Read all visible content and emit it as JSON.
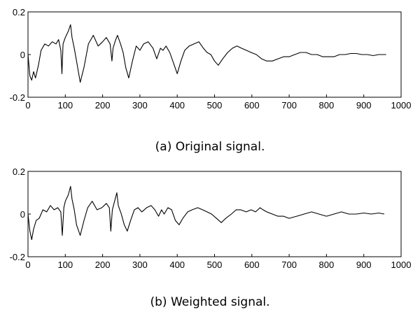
{
  "chart_data": [
    {
      "type": "line",
      "caption": "(a) Original signal.",
      "title": "",
      "xlabel": "",
      "ylabel": "",
      "xlim": [
        0,
        1000
      ],
      "ylim": [
        -0.2,
        0.2
      ],
      "xticks": [
        0,
        100,
        200,
        300,
        400,
        500,
        600,
        700,
        800,
        900,
        1000
      ],
      "yticks": [
        -0.2,
        0,
        0.2
      ],
      "ytick_labels": [
        "-0.2",
        "0",
        "0.2"
      ],
      "grid": false,
      "series": [
        {
          "x": [
            0,
            5,
            10,
            15,
            20,
            28,
            35,
            45,
            55,
            65,
            75,
            82,
            88,
            91,
            94,
            100,
            108,
            114,
            118,
            124,
            132,
            140,
            150,
            162,
            175,
            188,
            200,
            210,
            220,
            225,
            228,
            235,
            240,
            248,
            255,
            262,
            270,
            280,
            290,
            300,
            310,
            322,
            335,
            345,
            355,
            362,
            370,
            380,
            390,
            400,
            410,
            420,
            432,
            445,
            458,
            470,
            480,
            490,
            500,
            510,
            522,
            535,
            548,
            560,
            572,
            585,
            598,
            612,
            626,
            640,
            655,
            670,
            685,
            700,
            715,
            730,
            745,
            760,
            775,
            790,
            805,
            820,
            835,
            850,
            865,
            880,
            895,
            910,
            925,
            940,
            955,
            960
          ],
          "y": [
            0.0,
            -0.1,
            -0.12,
            -0.08,
            -0.11,
            -0.05,
            0.02,
            0.05,
            0.04,
            0.06,
            0.05,
            0.07,
            0.02,
            -0.09,
            0.05,
            0.08,
            0.11,
            0.14,
            0.08,
            0.03,
            -0.05,
            -0.13,
            -0.06,
            0.05,
            0.09,
            0.04,
            0.06,
            0.08,
            0.05,
            -0.03,
            0.03,
            0.07,
            0.09,
            0.05,
            0.01,
            -0.06,
            -0.11,
            -0.03,
            0.04,
            0.02,
            0.05,
            0.06,
            0.03,
            -0.02,
            0.03,
            0.02,
            0.04,
            0.01,
            -0.04,
            -0.09,
            -0.03,
            0.02,
            0.04,
            0.05,
            0.06,
            0.03,
            0.01,
            0.0,
            -0.03,
            -0.05,
            -0.02,
            0.01,
            0.03,
            0.04,
            0.03,
            0.02,
            0.01,
            0.0,
            -0.02,
            -0.03,
            -0.03,
            -0.02,
            -0.01,
            -0.01,
            0.0,
            0.01,
            0.01,
            0.0,
            0.0,
            -0.01,
            -0.01,
            -0.01,
            0.0,
            0.0,
            0.005,
            0.005,
            0.0,
            0.0,
            -0.005,
            0.0,
            0.0,
            0.0
          ]
        }
      ]
    },
    {
      "type": "line",
      "caption": "(b) Weighted signal.",
      "title": "",
      "xlabel": "",
      "ylabel": "",
      "xlim": [
        0,
        1000
      ],
      "ylim": [
        -0.2,
        0.2
      ],
      "xticks": [
        0,
        100,
        200,
        300,
        400,
        500,
        600,
        700,
        800,
        900,
        1000
      ],
      "yticks": [
        -0.2,
        0,
        0.2
      ],
      "ytick_labels": [
        "-0.2",
        "0",
        "0.2"
      ],
      "grid": false,
      "series": [
        {
          "x": [
            0,
            5,
            10,
            15,
            22,
            30,
            40,
            50,
            60,
            70,
            80,
            88,
            92,
            96,
            100,
            108,
            114,
            118,
            124,
            130,
            140,
            150,
            160,
            172,
            185,
            198,
            210,
            218,
            222,
            226,
            232,
            238,
            242,
            250,
            258,
            266,
            275,
            285,
            295,
            305,
            318,
            330,
            340,
            350,
            358,
            365,
            375,
            385,
            395,
            405,
            415,
            428,
            440,
            455,
            468,
            480,
            492,
            505,
            518,
            530,
            545,
            558,
            570,
            585,
            598,
            610,
            622,
            630,
            640,
            655,
            670,
            685,
            700,
            720,
            740,
            760,
            780,
            800,
            820,
            840,
            860,
            880,
            900,
            920,
            940,
            955
          ],
          "y": [
            0.0,
            -0.08,
            -0.12,
            -0.07,
            -0.03,
            -0.02,
            0.02,
            0.01,
            0.04,
            0.02,
            0.03,
            0.01,
            -0.1,
            0.03,
            0.06,
            0.09,
            0.13,
            0.07,
            0.02,
            -0.05,
            -0.1,
            -0.03,
            0.03,
            0.06,
            0.02,
            0.03,
            0.05,
            0.03,
            -0.08,
            0.02,
            0.06,
            0.1,
            0.04,
            0.0,
            -0.05,
            -0.08,
            -0.03,
            0.02,
            0.03,
            0.01,
            0.03,
            0.04,
            0.02,
            -0.01,
            0.02,
            0.0,
            0.03,
            0.02,
            -0.03,
            -0.05,
            -0.02,
            0.01,
            0.02,
            0.03,
            0.02,
            0.01,
            0.0,
            -0.02,
            -0.04,
            -0.02,
            0.0,
            0.02,
            0.02,
            0.01,
            0.02,
            0.01,
            0.03,
            0.02,
            0.01,
            0.0,
            -0.01,
            -0.01,
            -0.02,
            -0.01,
            0.0,
            0.01,
            0.0,
            -0.01,
            0.0,
            0.01,
            0.0,
            0.0,
            0.005,
            0.0,
            0.005,
            0.0
          ]
        }
      ]
    }
  ]
}
